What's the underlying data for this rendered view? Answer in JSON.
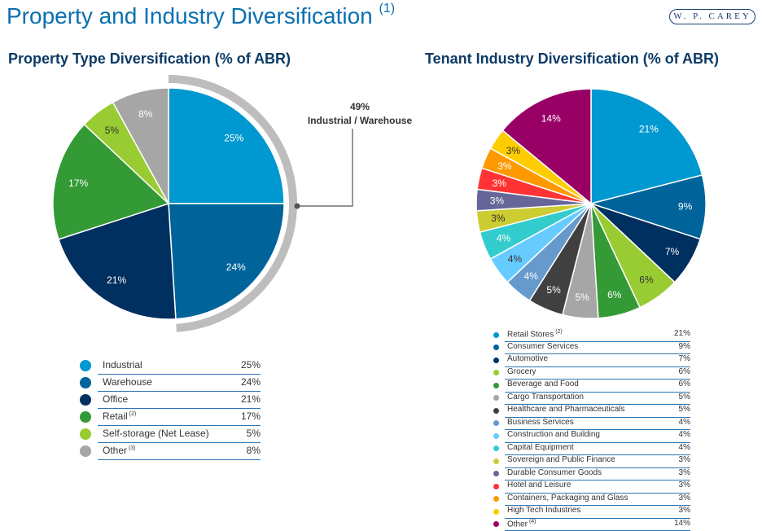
{
  "header": {
    "title": "Property and Industry Diversification",
    "title_note": "(1)",
    "logo_text": "W. P. CAREY"
  },
  "chart_data": [
    {
      "type": "pie",
      "title": "Property Type Diversification (% of ABR)",
      "categories": [
        "Industrial",
        "Warehouse",
        "Office",
        "Retail",
        "Self-storage (Net Lease)",
        "Other"
      ],
      "notes": [
        "",
        "",
        "",
        "(2)",
        "",
        "(3)"
      ],
      "values": [
        25,
        24,
        21,
        17,
        5,
        8
      ],
      "labels": [
        "25%",
        "24%",
        "21%",
        "17%",
        "5%",
        "8%"
      ],
      "colors": [
        "#0098d0",
        "#00649b",
        "#00305f",
        "#339a35",
        "#99cc33",
        "#a6a6a6"
      ],
      "annotation": {
        "value": "49%",
        "label": "Industrial / Warehouse",
        "covers": [
          "Industrial",
          "Warehouse"
        ]
      },
      "legend": "bottom"
    },
    {
      "type": "pie",
      "title": "Tenant Industry Diversification (% of ABR)",
      "categories": [
        "Retail Stores",
        "Consumer Services",
        "Automotive",
        "Grocery",
        "Beverage and Food",
        "Cargo Transportation",
        "Healthcare and Pharmaceuticals",
        "Business Services",
        "Construction and Building",
        "Capital Equipment",
        "Sovereign and Public Finance",
        "Durable Consumer Goods",
        "Hotel and Leisure",
        "Containers, Packaging and Glass",
        "High Tech Industries",
        "Other"
      ],
      "notes": [
        "(2)",
        "",
        "",
        "",
        "",
        "",
        "",
        "",
        "",
        "",
        "",
        "",
        "",
        "",
        "",
        "(4)"
      ],
      "values": [
        21,
        9,
        7,
        6,
        6,
        5,
        5,
        4,
        4,
        4,
        3,
        3,
        3,
        3,
        3,
        14
      ],
      "labels": [
        "21%",
        "9%",
        "7%",
        "6%",
        "6%",
        "5%",
        "5%",
        "4%",
        "4%",
        "4%",
        "3%",
        "3%",
        "3%",
        "3%",
        "3%",
        "14%"
      ],
      "colors": [
        "#0098d0",
        "#00649b",
        "#00305f",
        "#99cc33",
        "#339a35",
        "#a6a6a6",
        "#404040",
        "#6699cc",
        "#66ccff",
        "#33cccc",
        "#cccc33",
        "#666699",
        "#ff3333",
        "#ff9900",
        "#ffcc00",
        "#990066"
      ],
      "legend": "bottom"
    }
  ]
}
